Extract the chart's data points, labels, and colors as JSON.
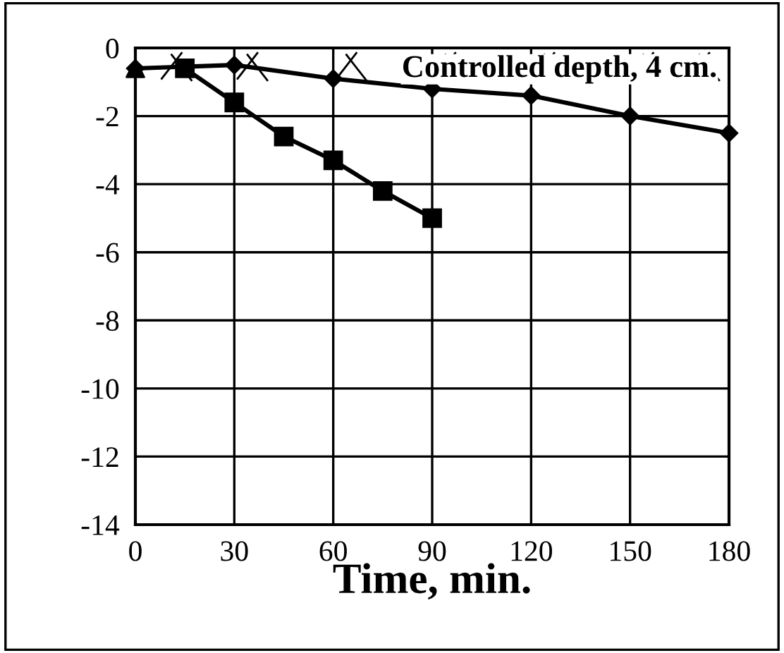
{
  "chart_data": {
    "type": "line",
    "title": "Controlled depth, 4 cm.",
    "xlabel": "Time, min.",
    "xlim": [
      0,
      180
    ],
    "xticks": [
      0,
      30,
      60,
      90,
      120,
      150,
      180
    ],
    "ylim": [
      -14,
      0
    ],
    "yticks": [
      -14,
      -12,
      -10,
      -8,
      -6,
      -4,
      -2,
      0
    ],
    "grid": true,
    "series": [
      {
        "color": "#000000",
        "marker": "diamond",
        "x": [
          0,
          30,
          60,
          90,
          120,
          150,
          180
        ],
        "values": [
          -0.6,
          -0.5,
          -0.9,
          -1.2,
          -1.4,
          -2.0,
          -2.5
        ]
      },
      {
        "color": "#000000",
        "marker": "square",
        "x": [
          15,
          30,
          45,
          60,
          75,
          90
        ],
        "values": [
          -0.6,
          -1.6,
          -2.6,
          -3.3,
          -4.2,
          -5.0
        ]
      },
      {
        "type": "scatter",
        "color": "#000000",
        "marker": "triangle",
        "x": [
          0
        ],
        "values": [
          -0.6
        ]
      }
    ]
  }
}
